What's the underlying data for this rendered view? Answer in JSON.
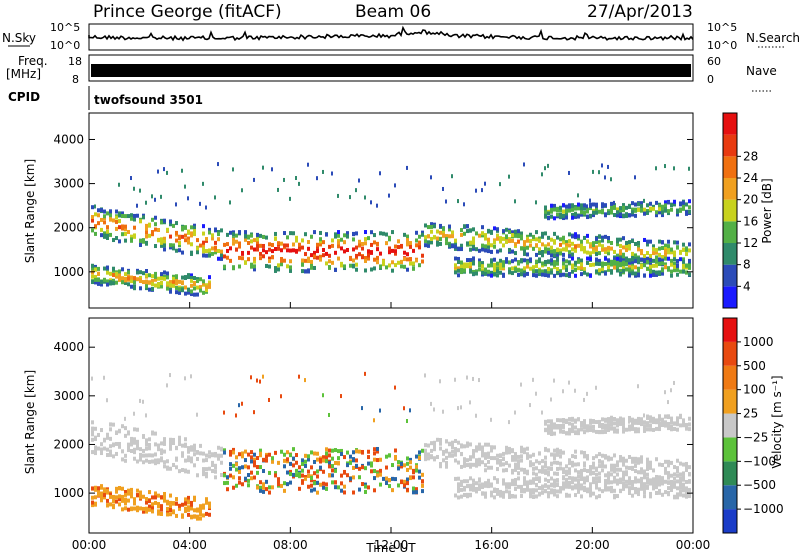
{
  "header": {
    "station": "Prince George (fitACF)",
    "beam": "Beam 06",
    "date": "27/Apr/2013"
  },
  "strip_labels": {
    "nsky": "N.Sky",
    "nsky_top": "10^5",
    "nsky_bottom": "10^0",
    "nsearch": "N.Search",
    "nsearch_top": "10^5",
    "nsearch_bottom": "10^0",
    "freq": "Freq.",
    "freq_unit": "[MHz]",
    "freq_top": "18",
    "freq_bottom": "8",
    "nave": "Nave",
    "nave_top": "60",
    "nave_bottom": "0",
    "cpid": "CPID",
    "cpid_value": "twofsound 3501"
  },
  "chart_data": [
    {
      "type": "heatmap",
      "name": "power",
      "xlabel": "",
      "ylabel": "Slant Range [km]",
      "x_ticks": [
        "00:00",
        "04:00",
        "08:00",
        "12:00",
        "16:00",
        "20:00",
        "00:00"
      ],
      "y_ticks": [
        1000,
        2000,
        3000,
        4000
      ],
      "ylim": [
        180,
        4600
      ],
      "colorbar": {
        "label": "Power [dB]",
        "ticks": [
          "4",
          "8",
          "12",
          "16",
          "20",
          "24",
          "28"
        ],
        "colors": [
          "#1a1aff",
          "#2b4bb8",
          "#2f8a6a",
          "#53b046",
          "#c8d21e",
          "#f0a020",
          "#f07010",
          "#e83a10",
          "#e61010"
        ]
      }
    },
    {
      "type": "heatmap",
      "name": "velocity",
      "xlabel": "Time UT",
      "ylabel": "Slant Range [km]",
      "x_ticks": [
        "00:00",
        "04:00",
        "08:00",
        "12:00",
        "16:00",
        "20:00",
        "00:00"
      ],
      "y_ticks": [
        1000,
        2000,
        3000,
        4000
      ],
      "ylim": [
        180,
        4600
      ],
      "colorbar": {
        "label": "Velocity [m s⁻¹]",
        "ticks": [
          "1000",
          "500",
          "100",
          "25",
          "−25",
          "−100",
          "−500",
          "−1000"
        ],
        "colors": [
          "#1a3cc8",
          "#2866a8",
          "#2f8a56",
          "#5cc23a",
          "#c8c8c8",
          "#f0a020",
          "#ef7a14",
          "#e84a10",
          "#e61010"
        ]
      }
    }
  ]
}
